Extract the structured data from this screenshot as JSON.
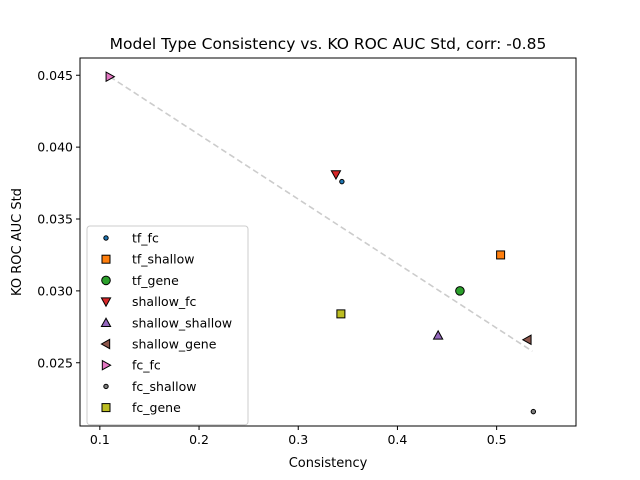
{
  "chart_data": {
    "type": "scatter",
    "title": "Model Type Consistency vs. KO ROC AUC Std, corr: -0.85",
    "xlabel": "Consistency",
    "ylabel": "KO ROC AUC Std",
    "xlim": [
      0.08,
      0.58
    ],
    "ylim": [
      0.0206,
      0.0462
    ],
    "xticks": [
      0.1,
      0.2,
      0.3,
      0.4,
      0.5
    ],
    "xtick_labels": [
      "0.1",
      "0.2",
      "0.3",
      "0.4",
      "0.5"
    ],
    "yticks": [
      0.025,
      0.03,
      0.035,
      0.04,
      0.045
    ],
    "ytick_labels": [
      "0.025",
      "0.030",
      "0.035",
      "0.040",
      "0.045"
    ],
    "grid": false,
    "legend_position": "lower-left",
    "trendline": {
      "x": [
        0.11,
        0.536
      ],
      "y": [
        0.0449,
        0.0258
      ],
      "color": "#cccccc",
      "style": "dashed"
    },
    "series": [
      {
        "name": "tf_fc",
        "marker": "point",
        "color": "#1f77b4",
        "points": [
          {
            "x": 0.344,
            "y": 0.0376
          }
        ]
      },
      {
        "name": "tf_shallow",
        "marker": "square",
        "color": "#ff7f0e",
        "points": [
          {
            "x": 0.504,
            "y": 0.0325
          }
        ]
      },
      {
        "name": "tf_gene",
        "marker": "circle",
        "color": "#2ca02c",
        "points": [
          {
            "x": 0.463,
            "y": 0.03
          }
        ]
      },
      {
        "name": "shallow_fc",
        "marker": "triangle-down",
        "color": "#d62728",
        "points": [
          {
            "x": 0.338,
            "y": 0.0381
          }
        ]
      },
      {
        "name": "shallow_shallow",
        "marker": "triangle-up",
        "color": "#9467bd",
        "points": [
          {
            "x": 0.441,
            "y": 0.0269
          }
        ]
      },
      {
        "name": "shallow_gene",
        "marker": "triangle-left",
        "color": "#8c564b",
        "points": [
          {
            "x": 0.531,
            "y": 0.0266
          }
        ]
      },
      {
        "name": "fc_fc",
        "marker": "triangle-right",
        "color": "#e377c2",
        "points": [
          {
            "x": 0.11,
            "y": 0.0449
          }
        ]
      },
      {
        "name": "fc_shallow",
        "marker": "point",
        "color": "#7f7f7f",
        "points": [
          {
            "x": 0.537,
            "y": 0.0216
          }
        ]
      },
      {
        "name": "fc_gene",
        "marker": "square",
        "color": "#bcbd22",
        "points": [
          {
            "x": 0.343,
            "y": 0.0284
          }
        ]
      }
    ]
  }
}
